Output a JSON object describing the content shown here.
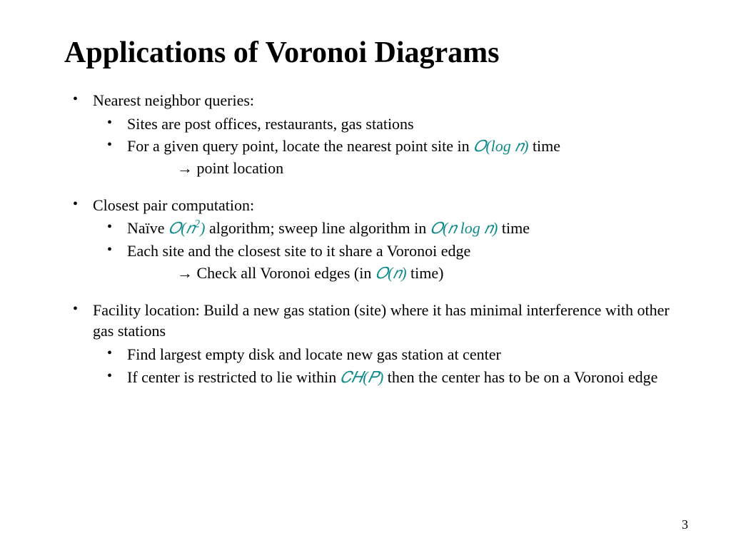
{
  "colors": {
    "text": "#000000",
    "math_accent": "#0f8a8a",
    "background": "#ffffff"
  },
  "typography": {
    "title_font_size_pt": 42,
    "body_font_size_pt": 22,
    "font_family": "Times New Roman"
  },
  "title": "Applications of Voronoi Diagrams",
  "page_number": "3",
  "bullets": [
    {
      "text": "Nearest neighbor queries:",
      "sub": [
        {
          "text": "Sites are post offices, restaurants, gas stations"
        },
        {
          "pre": "For a given query point, locate the nearest point site in ",
          "math": "𝑂(log 𝑛)",
          "post": " time",
          "arrow_tail": "point location"
        }
      ]
    },
    {
      "text": "Closest pair computation:",
      "sub": [
        {
          "pre": "Naïve ",
          "math": "𝑂(𝑛²)",
          "mid": " algorithm; sweep line algorithm in ",
          "math2": "𝑂(𝑛 log 𝑛)",
          "post": " time"
        },
        {
          "text": "Each site and the closest site to it share a Voronoi edge",
          "arrow_pre": "Check all Voronoi edges (in ",
          "arrow_math": "𝑂(𝑛)",
          "arrow_post": " time)"
        }
      ]
    },
    {
      "text": "Facility location: Build a new gas station (site) where it has minimal interference with other gas stations",
      "sub": [
        {
          "text": "Find largest empty disk and locate new gas station at center"
        },
        {
          "pre": "If center is restricted to lie within ",
          "math": "𝐶𝐻(𝑃)",
          "post": " then the center has to be on a Voronoi edge"
        }
      ]
    }
  ]
}
